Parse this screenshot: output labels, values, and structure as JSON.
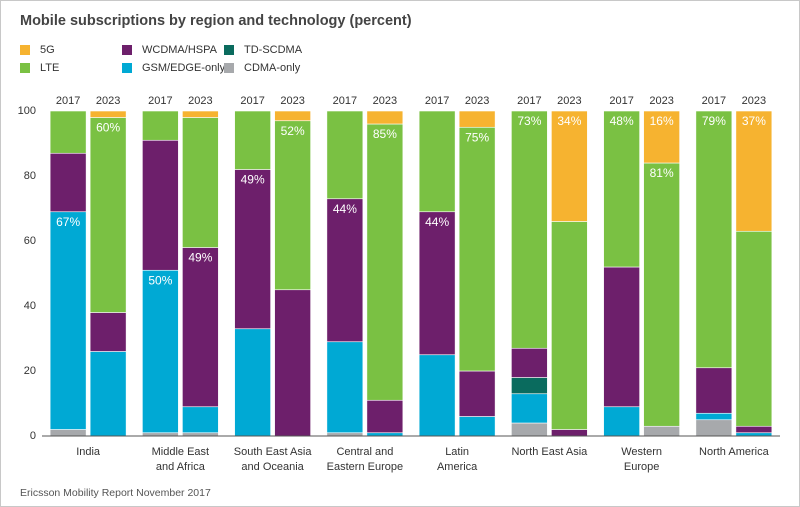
{
  "chart_data": {
    "type": "grouped-stacked-bar",
    "title": "Mobile subscriptions by region and technology (percent)",
    "source": "Ericsson Mobility Report November 2017",
    "categories": [
      [
        "India"
      ],
      [
        "Middle East",
        "and Africa"
      ],
      [
        "South East Asia",
        "and Oceania"
      ],
      [
        "Central and",
        "Eastern Europe"
      ],
      [
        "Latin",
        "America"
      ],
      [
        "North East Asia"
      ],
      [
        "Western",
        "Europe"
      ],
      [
        "North America"
      ]
    ],
    "sub_categories": [
      "2017",
      "2023"
    ],
    "ylim": [
      0,
      100
    ],
    "yticks": [
      0,
      20,
      40,
      60,
      80,
      100
    ],
    "grid": false,
    "series": [
      {
        "name": "CDMA-only",
        "color": "#a7a9ac",
        "values": [
          [
            2,
            0
          ],
          [
            1,
            1
          ],
          [
            0,
            0
          ],
          [
            1,
            0
          ],
          [
            0,
            0
          ],
          [
            4,
            0
          ],
          [
            0,
            3
          ],
          [
            5,
            0
          ]
        ]
      },
      {
        "name": "GSM/EDGE-only",
        "color": "#00a9d4",
        "values": [
          [
            67,
            26
          ],
          [
            50,
            8
          ],
          [
            33,
            0
          ],
          [
            28,
            1
          ],
          [
            25,
            6
          ],
          [
            9,
            0
          ],
          [
            9,
            0
          ],
          [
            2,
            1
          ]
        ],
        "value_labels": [
          [
            "67%",
            null
          ],
          [
            "50%",
            null
          ],
          [
            null,
            null
          ],
          [
            null,
            null
          ],
          [
            null,
            null
          ],
          [
            null,
            null
          ],
          [
            null,
            null
          ],
          [
            null,
            null
          ]
        ]
      },
      {
        "name": "TD-SCDMA",
        "color": "#0a6b5e",
        "values": [
          [
            0,
            0
          ],
          [
            0,
            0
          ],
          [
            0,
            0
          ],
          [
            0,
            0
          ],
          [
            0,
            0
          ],
          [
            5,
            0
          ],
          [
            0,
            0
          ],
          [
            0,
            0
          ]
        ]
      },
      {
        "name": "WCDMA/HSPA",
        "color": "#6d1f6b",
        "values": [
          [
            18,
            12
          ],
          [
            40,
            49
          ],
          [
            49,
            45
          ],
          [
            44,
            10
          ],
          [
            44,
            14
          ],
          [
            9,
            2
          ],
          [
            43,
            0
          ],
          [
            14,
            2
          ]
        ],
        "value_labels": [
          [
            null,
            null
          ],
          [
            null,
            "49%"
          ],
          [
            "49%",
            null
          ],
          [
            "44%",
            null
          ],
          [
            "44%",
            null
          ],
          [
            null,
            null
          ],
          [
            null,
            null
          ],
          [
            null,
            null
          ]
        ]
      },
      {
        "name": "LTE",
        "color": "#7ac143",
        "values": [
          [
            13,
            60
          ],
          [
            9,
            40
          ],
          [
            18,
            52
          ],
          [
            27,
            85
          ],
          [
            31,
            75
          ],
          [
            73,
            64
          ],
          [
            48,
            81
          ],
          [
            79,
            60
          ]
        ],
        "value_labels": [
          [
            null,
            "60%"
          ],
          [
            null,
            null
          ],
          [
            null,
            "52%"
          ],
          [
            null,
            "85%"
          ],
          [
            null,
            "75%"
          ],
          [
            "73%",
            null
          ],
          [
            "48%",
            "81%"
          ],
          [
            "79%",
            null
          ]
        ]
      },
      {
        "name": "5G",
        "color": "#f6b330",
        "values": [
          [
            0,
            2
          ],
          [
            0,
            2
          ],
          [
            0,
            3
          ],
          [
            0,
            4
          ],
          [
            0,
            5
          ],
          [
            0,
            34
          ],
          [
            0,
            16
          ],
          [
            0,
            37
          ]
        ],
        "value_labels": [
          [
            null,
            null
          ],
          [
            null,
            null
          ],
          [
            null,
            null
          ],
          [
            null,
            null
          ],
          [
            null,
            null
          ],
          [
            null,
            "34%"
          ],
          [
            null,
            "16%"
          ],
          [
            null,
            "37%"
          ]
        ]
      }
    ]
  }
}
